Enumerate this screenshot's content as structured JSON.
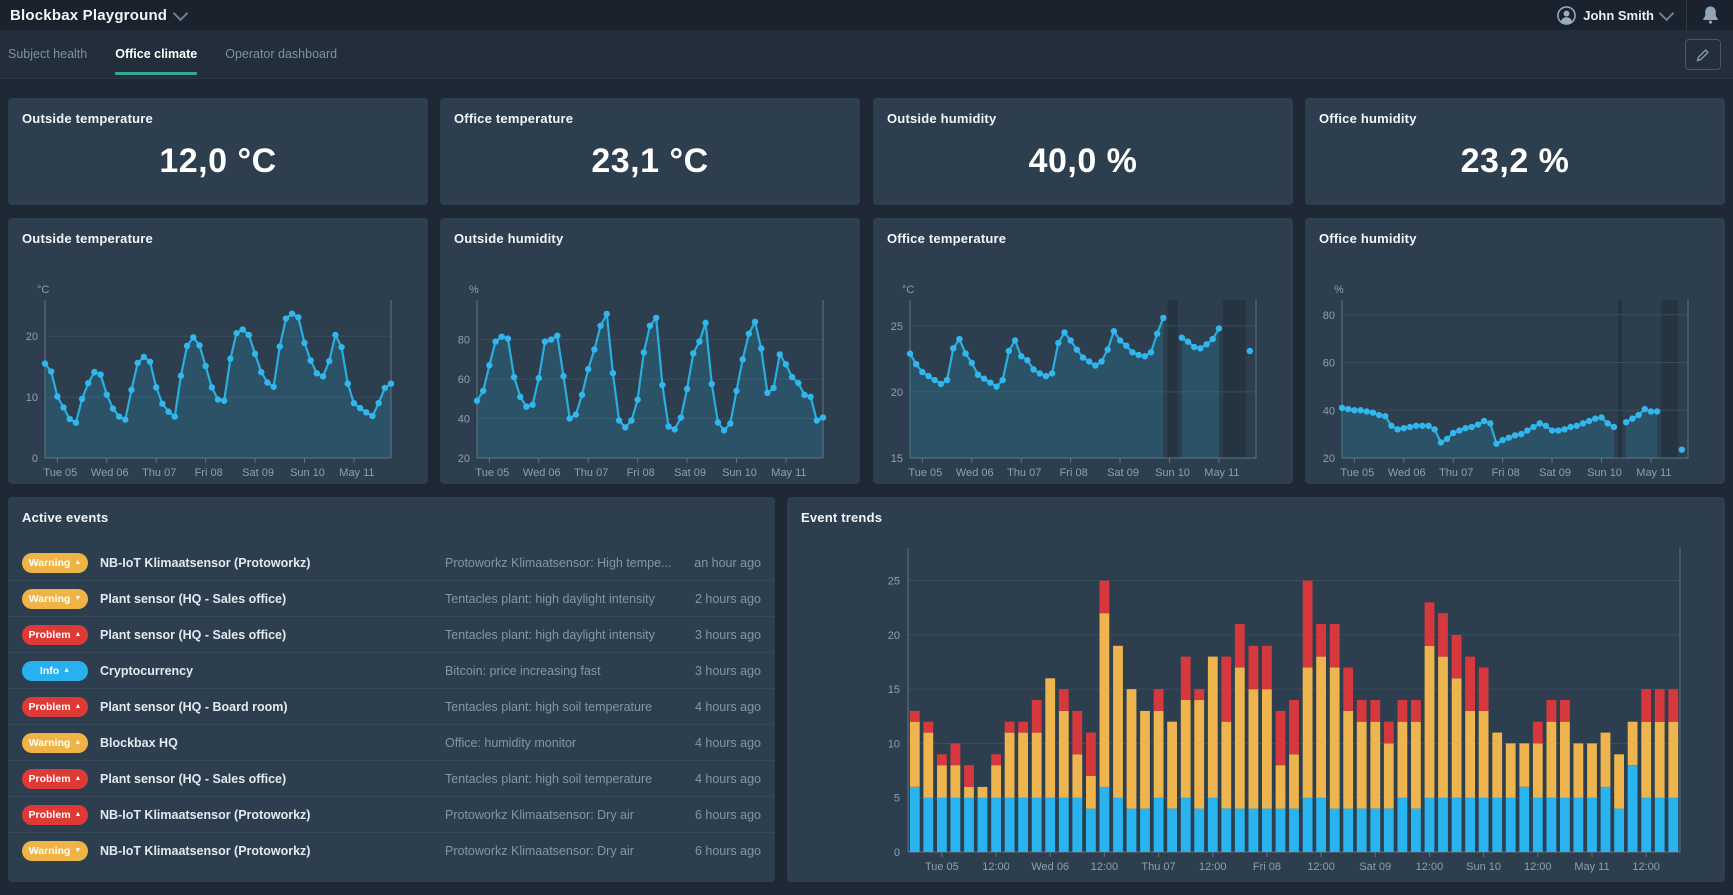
{
  "topbar": {
    "title": "Blockbax Playground",
    "user": "John Smith"
  },
  "tabs": [
    {
      "label": "Subject health"
    },
    {
      "label": "Office climate"
    },
    {
      "label": "Operator dashboard"
    }
  ],
  "kpis": [
    {
      "title": "Outside temperature",
      "value": "12,0 °C"
    },
    {
      "title": "Office temperature",
      "value": "23,1 °C"
    },
    {
      "title": "Outside humidity",
      "value": "40,0 %"
    },
    {
      "title": "Office humidity",
      "value": "23,2 %"
    }
  ],
  "events": {
    "title": "Active events",
    "rows": [
      {
        "severity": "Warning",
        "direction": "up",
        "subject": "NB-IoT Klimaatsensor (Protoworkz)",
        "description": "Protoworkz Klimaatsensor: High tempe...",
        "time": "an hour ago"
      },
      {
        "severity": "Warning",
        "direction": "down",
        "subject": "Plant sensor (HQ - Sales office)",
        "description": "Tentacles plant: high daylight intensity",
        "time": "2 hours ago"
      },
      {
        "severity": "Problem",
        "direction": "up",
        "subject": "Plant sensor (HQ - Sales office)",
        "description": "Tentacles plant: high daylight intensity",
        "time": "3 hours ago"
      },
      {
        "severity": "Info",
        "direction": "up",
        "subject": "Cryptocurrency",
        "description": "Bitcoin: price increasing fast",
        "time": "3 hours ago"
      },
      {
        "severity": "Problem",
        "direction": "up",
        "subject": "Plant sensor (HQ - Board room)",
        "description": "Tentacles plant: high soil temperature",
        "time": "4 hours ago"
      },
      {
        "severity": "Warning",
        "direction": "up",
        "subject": "Blockbax HQ",
        "description": "Office: humidity monitor",
        "time": "4 hours ago"
      },
      {
        "severity": "Problem",
        "direction": "up",
        "subject": "Plant sensor (HQ - Sales office)",
        "description": "Tentacles plant: high soil temperature",
        "time": "4 hours ago"
      },
      {
        "severity": "Problem",
        "direction": "up",
        "subject": "NB-IoT Klimaatsensor (Protoworkz)",
        "description": "Protoworkz Klimaatsensor: Dry air",
        "time": "6 hours ago"
      },
      {
        "severity": "Warning",
        "direction": "down",
        "subject": "NB-IoT Klimaatsensor (Protoworkz)",
        "description": "Protoworkz Klimaatsensor: Dry air",
        "time": "6 hours ago"
      }
    ]
  },
  "chart_data": [
    {
      "type": "line",
      "title": "Outside temperature",
      "ylabel": "°C",
      "ymin": 0,
      "ymax": 24.3,
      "yticks": [
        0,
        10,
        20
      ],
      "xtick_labels": [
        "Tue 05",
        "Wed 06",
        "Thu 07",
        "Fri 08",
        "Sat 09",
        "Sun 10",
        "May 11"
      ],
      "xtick_index": [
        2,
        10,
        18,
        26,
        34,
        42,
        50
      ],
      "values": [
        15.5,
        14.2,
        10.1,
        8.3,
        6.4,
        5.8,
        9.7,
        12.3,
        14.1,
        13.7,
        10.4,
        8.1,
        6.8,
        6.3,
        11.2,
        15.6,
        16.6,
        15.8,
        11.6,
        8.9,
        7.6,
        6.8,
        13.5,
        18.4,
        19.8,
        18.5,
        15.1,
        11.6,
        9.6,
        9.4,
        16.3,
        20.5,
        21.1,
        20.2,
        17.1,
        14.1,
        12.4,
        11.7,
        18.3,
        22.9,
        23.7,
        23.1,
        18.9,
        16.0,
        13.9,
        13.4,
        15.9,
        20.2,
        18.2,
        12.2,
        9.0,
        8.2,
        7.5,
        6.9,
        9.0,
        11.5,
        12.2
      ]
    },
    {
      "type": "line",
      "title": "Outside humidity",
      "ylabel": "%",
      "ymin": 20,
      "ymax": 95,
      "yticks": [
        20,
        40,
        60,
        80
      ],
      "xtick_labels": [
        "Tue 05",
        "Wed 06",
        "Thu 07",
        "Fri 08",
        "Sat 09",
        "Sun 10",
        "May 11"
      ],
      "xtick_index": [
        2,
        10,
        18,
        26,
        34,
        42,
        50
      ],
      "values": [
        49,
        54,
        67,
        79,
        81.5,
        80.5,
        61,
        51,
        46,
        47,
        60.5,
        79,
        80,
        82,
        61.5,
        40,
        42,
        52,
        65,
        75,
        87,
        93,
        63,
        39,
        35.5,
        39,
        49.5,
        73.5,
        87,
        91,
        57,
        36,
        34.5,
        40.5,
        55,
        73,
        79,
        88.5,
        57.5,
        38,
        34,
        37.5,
        54,
        70,
        83,
        89,
        75.5,
        53,
        55.5,
        72.5,
        67.5,
        61,
        58,
        52,
        51,
        39,
        40.5
      ]
    },
    {
      "type": "line",
      "title": "Office temperature",
      "ylabel": "°C",
      "ymin": 15,
      "ymax": 26.2,
      "yticks": [
        15,
        20,
        25
      ],
      "xtick_labels": [
        "Tue 05",
        "Wed 06",
        "Thu 07",
        "Fri 08",
        "Sat 09",
        "Sun 10",
        "May 11"
      ],
      "xtick_index": [
        2,
        10,
        18,
        26,
        34,
        42,
        50
      ],
      "values": [
        22.9,
        22.1,
        21.5,
        21.2,
        20.9,
        20.6,
        20.9,
        23.3,
        24.0,
        22.9,
        22.2,
        21.3,
        21.0,
        20.7,
        20.4,
        20.9,
        23.1,
        23.9,
        22.7,
        22.4,
        21.7,
        21.4,
        21.2,
        21.4,
        23.7,
        24.5,
        23.9,
        23.2,
        22.6,
        22.3,
        22.0,
        22.3,
        23.2,
        24.6,
        23.9,
        23.5,
        23.0,
        22.8,
        22.7,
        23.0,
        24.4,
        25.6,
        null,
        null,
        24.1,
        23.8,
        23.4,
        23.3,
        23.6,
        24.0,
        24.8,
        null,
        null,
        null,
        null,
        23.1,
        null
      ]
    },
    {
      "type": "line",
      "title": "Office humidity",
      "ylabel": "%",
      "ymin": 20,
      "ymax": 82,
      "yticks": [
        20,
        40,
        60,
        80
      ],
      "xtick_labels": [
        "Tue 05",
        "Wed 06",
        "Thu 07",
        "Fri 08",
        "Sat 09",
        "Sun 10",
        "May 11"
      ],
      "xtick_index": [
        2,
        10,
        18,
        26,
        34,
        42,
        50
      ],
      "values": [
        41,
        40.5,
        40,
        40,
        39.5,
        39,
        38,
        37.5,
        33.5,
        32,
        32.5,
        33,
        33.5,
        33.5,
        33.5,
        32,
        26.5,
        28,
        30.5,
        31.5,
        32.5,
        33,
        34,
        35.5,
        34.5,
        26,
        27.5,
        28.5,
        29.5,
        30,
        31.5,
        33,
        34.5,
        33.5,
        31.5,
        31.5,
        32,
        33,
        33.5,
        34.5,
        35.5,
        36.5,
        37,
        34.5,
        33,
        null,
        35,
        36.5,
        38,
        40.5,
        39.5,
        39.5,
        null,
        null,
        null,
        23.5,
        null
      ]
    },
    {
      "type": "stacked-bar",
      "title": "Event trends",
      "ymin": 0,
      "ymax": 26.9,
      "yticks": [
        0,
        5,
        10,
        15,
        20,
        25
      ],
      "xtick_labels": [
        "Tue 05",
        "12:00",
        "Wed 06",
        "12:00",
        "Thu 07",
        "12:00",
        "Fri 08",
        "12:00",
        "Sat 09",
        "12:00",
        "Sun 10",
        "12:00",
        "May 11",
        "12:00"
      ],
      "xtick_index": [
        2,
        6,
        10,
        14,
        18,
        22,
        26,
        30,
        34,
        38,
        42,
        46,
        50,
        54
      ],
      "series": [
        {
          "name": "info",
          "color": "#29b4f0",
          "values": [
            6,
            5,
            5,
            5,
            5,
            5,
            5,
            5,
            5,
            5,
            5,
            5,
            5,
            4,
            6,
            5,
            4,
            4,
            5,
            4,
            5,
            4,
            5,
            4,
            4,
            4,
            4,
            4,
            4,
            5,
            5,
            4,
            4,
            4,
            4,
            4,
            5,
            4,
            5,
            5,
            5,
            5,
            5,
            5,
            5,
            6,
            5,
            5,
            5,
            5,
            5,
            6,
            4,
            8,
            5,
            5,
            5
          ]
        },
        {
          "name": "warning",
          "color": "#eeb44d",
          "values": [
            6,
            6,
            3,
            3,
            1,
            1,
            3,
            6,
            6,
            6,
            11,
            8,
            4,
            3,
            16,
            14,
            11,
            9,
            8,
            8,
            9,
            10,
            13,
            8,
            13,
            11,
            11,
            4,
            5,
            12,
            13,
            13,
            9,
            8,
            8,
            6,
            7,
            8,
            14,
            13,
            11,
            8,
            8,
            6,
            5,
            4,
            5,
            7,
            7,
            5,
            5,
            5,
            5,
            4,
            7,
            7,
            7
          ]
        },
        {
          "name": "problem",
          "color": "#d7383e",
          "values": [
            1,
            1,
            1,
            2,
            2,
            0,
            1,
            1,
            1,
            3,
            0,
            2,
            4,
            4,
            3,
            0,
            0,
            0,
            2,
            0,
            4,
            1,
            0,
            6,
            4,
            4,
            4,
            5,
            5,
            8,
            3,
            4,
            4,
            2,
            2,
            2,
            2,
            2,
            4,
            4,
            4,
            5,
            4,
            0,
            0,
            0,
            2,
            2,
            2,
            0,
            0,
            0,
            0,
            0,
            3,
            3,
            3
          ]
        }
      ]
    }
  ],
  "colors": {
    "line": "#2aaede",
    "dot": "#31b7ee",
    "area": "rgba(41,178,232,0.17)",
    "gap_band": "rgba(0,0,0,0.16)",
    "grid": "#3b4d5c",
    "axis": "#5e7383",
    "tick_text": "#8da0af",
    "severity": {
      "Warning": "#efb445",
      "Problem": "#df3a36",
      "Info": "#29b0ee"
    },
    "accent_underline": "#36a98e"
  }
}
